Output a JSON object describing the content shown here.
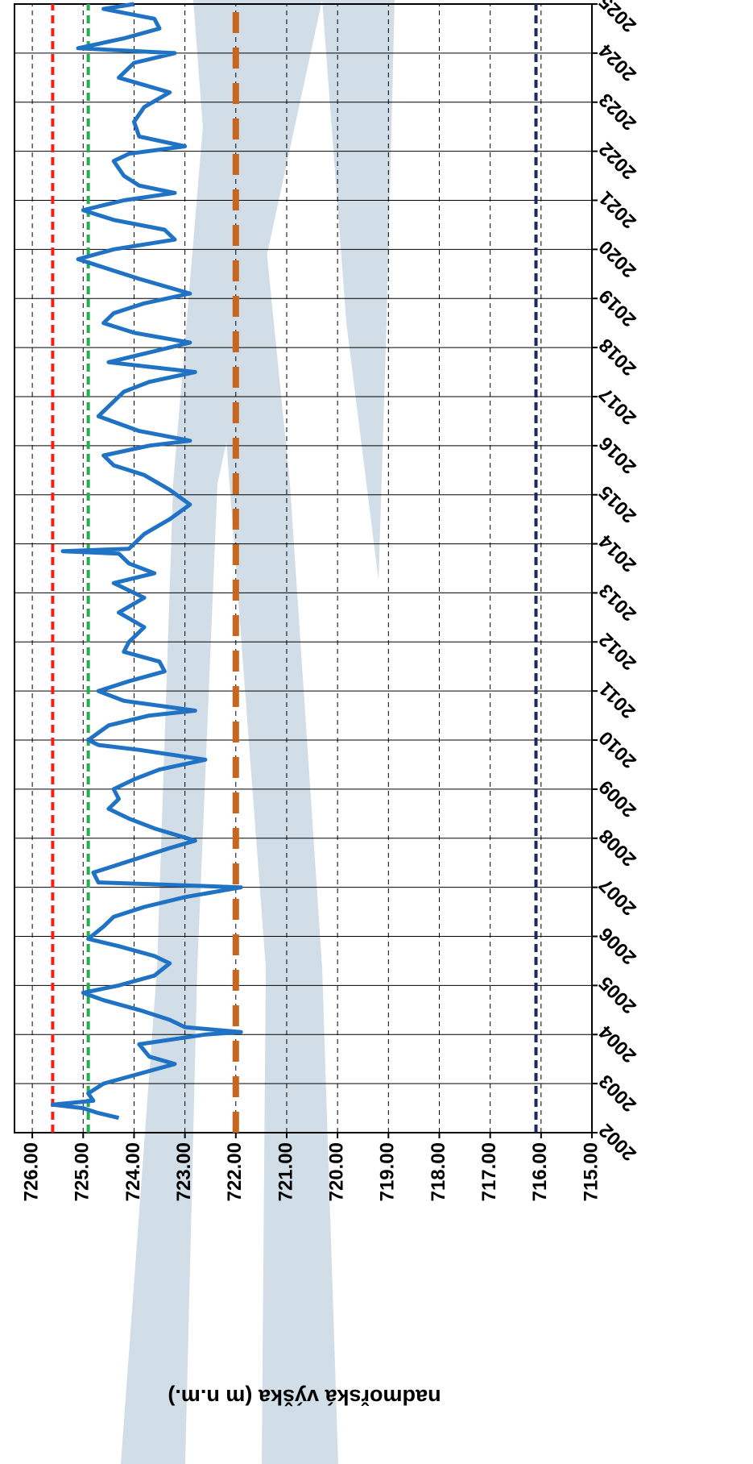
{
  "chart_data": {
    "type": "line",
    "y_label": "nadmořská výška (m n.m.)",
    "xlim": [
      2002,
      2025
    ],
    "xticks": [
      2002,
      2003,
      2004,
      2005,
      2006,
      2007,
      2008,
      2009,
      2010,
      2011,
      2012,
      2013,
      2014,
      2015,
      2016,
      2017,
      2018,
      2019,
      2020,
      2021,
      2022,
      2023,
      2024,
      2025
    ],
    "ylim": [
      715,
      726.35
    ],
    "yticks": [
      {
        "value": 715,
        "label": "715.00"
      },
      {
        "value": 716,
        "label": "716.00"
      },
      {
        "value": 717,
        "label": "717.00"
      },
      {
        "value": 718,
        "label": "718.00"
      },
      {
        "value": 719,
        "label": "719.00"
      },
      {
        "value": 720,
        "label": "720.00"
      },
      {
        "value": 721,
        "label": "721.00"
      },
      {
        "value": 722,
        "label": "722.00"
      },
      {
        "value": 723,
        "label": "723.00"
      },
      {
        "value": 724,
        "label": "724.00"
      },
      {
        "value": 725,
        "label": "725.00"
      },
      {
        "value": 726,
        "label": "726.00"
      }
    ],
    "grid": true,
    "reference_lines": [
      {
        "value": 725.6,
        "color": "#ff1a1a"
      },
      {
        "value": 724.9,
        "color": "#22b04a"
      },
      {
        "value": 722.0,
        "color": "#c8651e"
      },
      {
        "value": 716.1,
        "color": "#1a2a5e"
      }
    ],
    "series": [
      {
        "color": "#1f72c4",
        "x": [
          2002.3,
          2002.4,
          2002.5,
          2002.57,
          2002.65,
          2002.8,
          2003.0,
          2003.2,
          2003.4,
          2003.55,
          2003.8,
          2004.0,
          2004.05,
          2004.15,
          2004.3,
          2004.5,
          2004.7,
          2004.85,
          2005.0,
          2005.2,
          2005.45,
          2005.6,
          2005.8,
          2005.95,
          2006.2,
          2006.4,
          2006.6,
          2006.8,
          2007.0,
          2007.1,
          2007.3,
          2007.5,
          2007.8,
          2007.95,
          2008.2,
          2008.4,
          2008.6,
          2008.8,
          2009.0,
          2009.2,
          2009.4,
          2009.6,
          2009.8,
          2009.9,
          2010.0,
          2010.3,
          2010.5,
          2010.6,
          2010.8,
          2011.0,
          2011.2,
          2011.4,
          2011.6,
          2011.8,
          2012.0,
          2012.3,
          2012.6,
          2012.9,
          2013.2,
          2013.4,
          2013.6,
          2013.8,
          2013.85,
          2013.9,
          2014.2,
          2014.5,
          2014.8,
          2015.1,
          2015.4,
          2015.6,
          2015.8,
          2016.0,
          2016.1,
          2016.3,
          2016.6,
          2016.9,
          2017.1,
          2017.3,
          2017.5,
          2017.7,
          2017.9,
          2018.1,
          2018.3,
          2018.5,
          2018.7,
          2018.9,
          2019.1,
          2019.4,
          2019.6,
          2019.8,
          2020.0,
          2020.2,
          2020.4,
          2020.6,
          2020.8,
          2021.0,
          2021.15,
          2021.3,
          2021.5,
          2021.8,
          2021.95,
          2022.1,
          2022.3,
          2022.6,
          2022.9,
          2023.2,
          2023.5,
          2023.8,
          2024.0,
          2024.1,
          2024.3,
          2024.5,
          2024.7,
          2024.9,
          2025.0
        ],
        "values": [
          724.3,
          724.7,
          725.0,
          725.6,
          724.8,
          724.9,
          724.6,
          723.9,
          723.2,
          723.7,
          723.9,
          722.6,
          721.9,
          723.0,
          723.3,
          723.9,
          724.6,
          725.0,
          724.3,
          723.6,
          723.3,
          723.6,
          724.3,
          724.9,
          724.6,
          724.4,
          723.8,
          723.0,
          721.9,
          724.7,
          724.8,
          724.2,
          723.3,
          722.8,
          723.6,
          724.1,
          724.5,
          724.3,
          724.4,
          724.0,
          723.5,
          722.6,
          723.9,
          724.7,
          724.9,
          724.5,
          723.7,
          722.8,
          724.2,
          724.7,
          724.1,
          723.4,
          723.5,
          724.2,
          724.1,
          723.8,
          724.3,
          723.8,
          724.4,
          723.6,
          724.1,
          724.3,
          725.4,
          724.1,
          723.8,
          723.3,
          722.9,
          723.3,
          723.8,
          724.4,
          724.6,
          723.7,
          722.9,
          723.9,
          724.7,
          724.4,
          724.2,
          723.7,
          722.8,
          724.5,
          723.7,
          722.9,
          724.0,
          724.6,
          724.4,
          723.8,
          722.9,
          723.9,
          724.5,
          725.1,
          724.4,
          723.2,
          723.4,
          724.4,
          725.0,
          724.2,
          723.2,
          723.9,
          724.2,
          724.4,
          724.1,
          723.0,
          723.9,
          724.0,
          723.8,
          723.3,
          724.3,
          724.0,
          723.2,
          725.1,
          724.2,
          723.5,
          723.6,
          724.6,
          724.0
        ]
      }
    ]
  }
}
